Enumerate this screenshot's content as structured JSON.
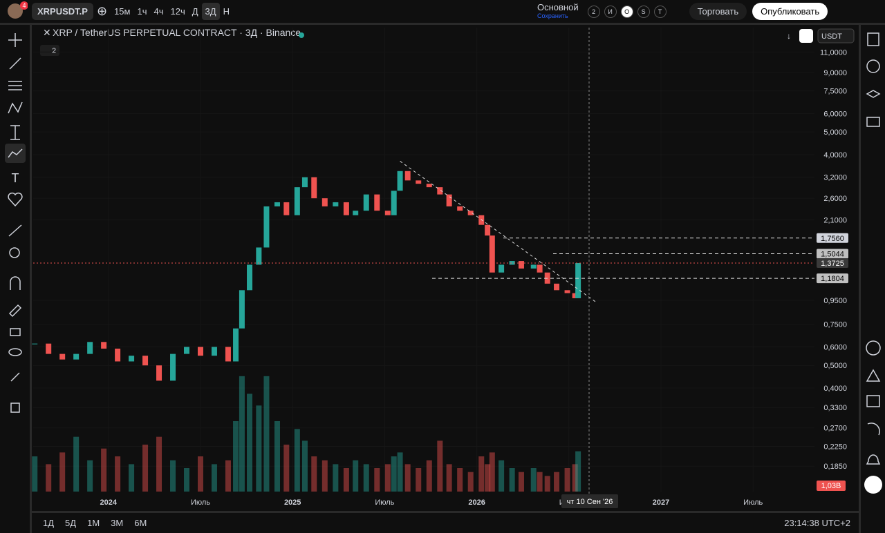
{
  "top_bar": {
    "avatar_badge": "4",
    "symbol": "XRPUSDT.P",
    "intervals": [
      "15м",
      "1ч",
      "4ч",
      "12ч",
      "Д",
      "3Д",
      "Н"
    ],
    "layout_name": "Основной",
    "layout_save": "Сохранить",
    "circles": [
      "2",
      "И",
      "O",
      "S",
      "T"
    ],
    "trade": "Торговать",
    "publish": "Опубликовать"
  },
  "chart_data": {
    "type": "candlestick",
    "title": "XRP / TetherUS PERPETUAL CONTRACT · 3Д · Binance",
    "indicators_count": "2",
    "currency": "USDT",
    "x": [
      -4.8,
      -3.9,
      -3.0,
      -2.1,
      -1.2,
      -0.3,
      0.6,
      1.5,
      2.4,
      3.3,
      4.2,
      5.1,
      6.0,
      6.9,
      7.8,
      8.3,
      8.7,
      9.2,
      9.8,
      10.3,
      11.0,
      11.6,
      12.3,
      12.8,
      13.4,
      14.1,
      14.8,
      15.5,
      16.1,
      16.8,
      17.5,
      18.2,
      18.6,
      19.0,
      19.5,
      20.2,
      20.9,
      21.6,
      22.2,
      22.9,
      23.6,
      24.3,
      24.7,
      25.0,
      25.6,
      26.3,
      26.9,
      27.7,
      28.1,
      28.6,
      29.2,
      29.9,
      30.4,
      30.6
    ],
    "values": [
      0.62,
      0.56,
      0.53,
      0.56,
      0.63,
      0.59,
      0.52,
      0.55,
      0.5,
      0.43,
      0.56,
      0.6,
      0.55,
      0.6,
      0.52,
      0.72,
      1.05,
      1.35,
      1.6,
      2.4,
      2.5,
      2.2,
      2.9,
      3.2,
      2.6,
      2.4,
      2.5,
      2.2,
      2.3,
      2.7,
      2.3,
      2.2,
      2.8,
      3.4,
      3.1,
      3.0,
      2.9,
      2.7,
      2.4,
      2.3,
      2.2,
      2.0,
      1.8,
      1.25,
      1.35,
      1.4,
      1.3,
      1.35,
      1.25,
      1.12,
      1.05,
      1.02,
      0.97,
      1.3725
    ],
    "up_color": "#26a69a",
    "down_color": "#ef5350",
    "volume": {
      "values": [
        0.9,
        0.7,
        1.0,
        1.4,
        0.8,
        1.1,
        0.9,
        0.7,
        1.2,
        1.4,
        0.8,
        0.6,
        0.9,
        0.7,
        0.8,
        1.8,
        2.95,
        2.5,
        2.2,
        2.95,
        1.8,
        1.2,
        1.6,
        1.3,
        0.9,
        0.8,
        0.7,
        0.6,
        0.8,
        0.7,
        0.6,
        0.7,
        0.9,
        1.0,
        0.7,
        0.6,
        0.8,
        1.3,
        0.7,
        0.6,
        0.5,
        0.9,
        0.7,
        1.0,
        0.8,
        0.6,
        0.5,
        0.6,
        0.5,
        0.4,
        0.5,
        0.6,
        0.7,
        1.03
      ],
      "last_label": {
        "value": 1.03,
        "label": "1,03B"
      }
    },
    "y2lim": [
      0,
      3
    ],
    "log_scale": true,
    "xlim": [
      -4.9,
      46
    ],
    "xticks": [
      {
        "value": 0,
        "label": "2024"
      },
      {
        "value": 6,
        "label": "Июль"
      },
      {
        "value": 12,
        "label": "2025"
      },
      {
        "value": 18,
        "label": "Июль"
      },
      {
        "value": 24,
        "label": "2026"
      },
      {
        "value": 30,
        "label": "Июль"
      },
      {
        "value": 36,
        "label": "2027"
      },
      {
        "value": 42,
        "label": "Июль"
      }
    ],
    "ylim": [
      0.144,
      14
    ],
    "yticks": [
      {
        "value": 11,
        "label": "11,0000"
      },
      {
        "value": 9,
        "label": "9,0000"
      },
      {
        "value": 7.5,
        "label": "7,5000"
      },
      {
        "value": 6,
        "label": "6,0000"
      },
      {
        "value": 5,
        "label": "5,0000"
      },
      {
        "value": 4,
        "label": "4,0000"
      },
      {
        "value": 3.2,
        "label": "3,2000"
      },
      {
        "value": 2.6,
        "label": "2,6000"
      },
      {
        "value": 2.1,
        "label": "2,1000"
      },
      {
        "value": 0.95,
        "label": "0,9500"
      },
      {
        "value": 0.75,
        "label": "0,7500"
      },
      {
        "value": 0.6,
        "label": "0,6000"
      },
      {
        "value": 0.5,
        "label": "0,5000"
      },
      {
        "value": 0.4,
        "label": "0,4000"
      },
      {
        "value": 0.33,
        "label": "0,3300"
      },
      {
        "value": 0.27,
        "label": "0,2700"
      },
      {
        "value": 0.225,
        "label": "0,2250"
      },
      {
        "value": 0.185,
        "label": "0,1850"
      }
    ],
    "levels": [
      {
        "value": 1.756,
        "label": "1,7560"
      },
      {
        "value": 1.5044,
        "label": "1,5044"
      },
      {
        "value": 1.3725,
        "label": "1,3725"
      },
      {
        "value": 1.1804,
        "label": "1,1804"
      }
    ],
    "trendline": {
      "x": [
        19.0,
        31.8
      ],
      "values": [
        3.75,
        0.93
      ]
    },
    "crosshair_label": "чт 10 Сен '26"
  },
  "bottom_bar": {
    "ranges": [
      "1Д",
      "5Д",
      "1М",
      "3М",
      "6М"
    ],
    "clock": "23:14:38 UTC+2"
  }
}
